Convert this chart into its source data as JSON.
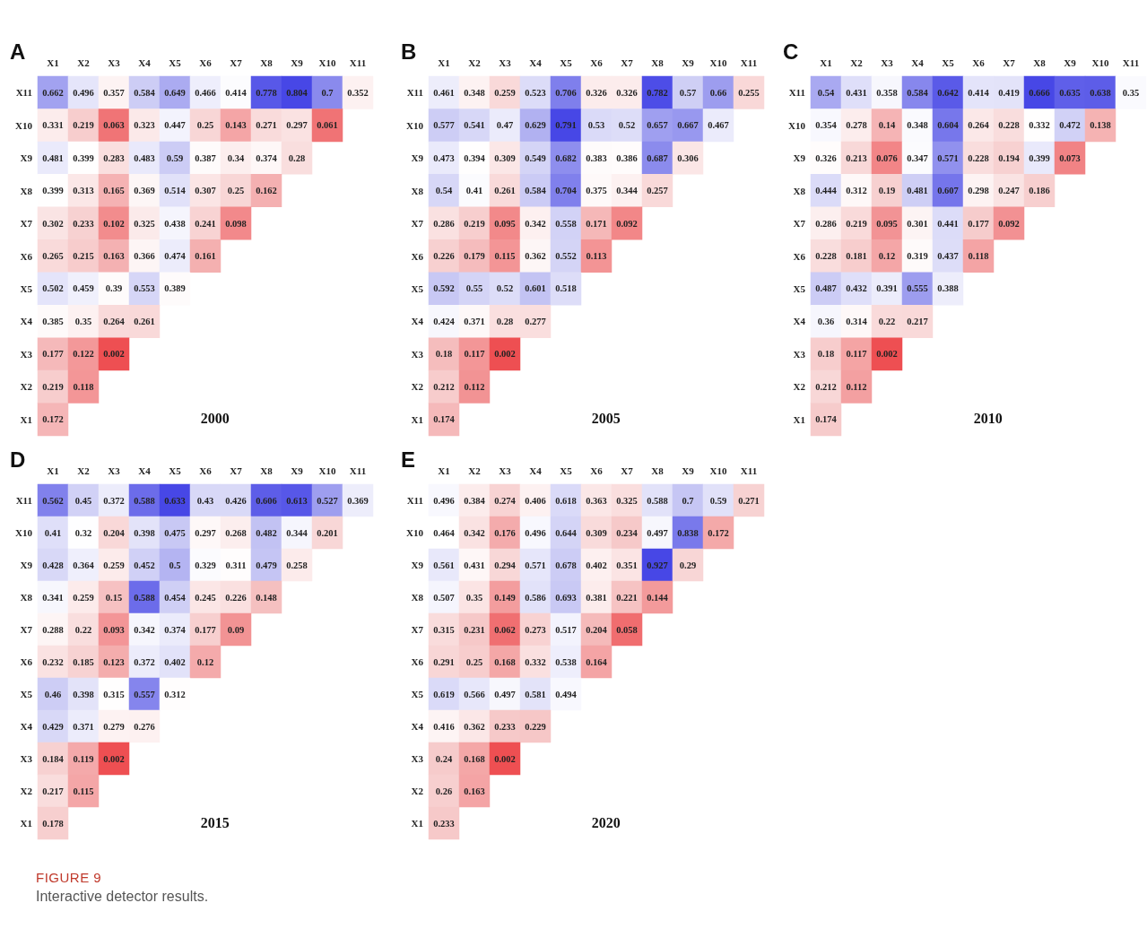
{
  "chart_data": [
    {
      "type": "heatmap",
      "title": "A",
      "subtitle": "2000",
      "data_labels": true,
      "categories": [
        "X1",
        "X2",
        "X3",
        "X4",
        "X5",
        "X6",
        "X7",
        "X8",
        "X9",
        "X10",
        "X11"
      ],
      "y_categories": [
        "X11",
        "X10",
        "X9",
        "X8",
        "X7",
        "X6",
        "X5",
        "X4",
        "X3",
        "X2",
        "X1"
      ],
      "cells": [
        [
          0.662,
          0.496,
          0.357,
          0.584,
          0.649,
          0.466,
          0.414,
          0.778,
          0.804,
          0.7,
          0.352
        ],
        [
          0.331,
          0.219,
          0.063,
          0.323,
          0.447,
          0.25,
          0.143,
          0.271,
          0.297,
          0.061,
          null
        ],
        [
          0.481,
          0.399,
          0.283,
          0.483,
          0.59,
          0.387,
          0.34,
          0.374,
          0.28,
          null,
          null
        ],
        [
          0.399,
          0.313,
          0.165,
          0.369,
          0.514,
          0.307,
          0.25,
          0.162,
          null,
          null,
          null
        ],
        [
          0.302,
          0.233,
          0.102,
          0.325,
          0.438,
          0.241,
          0.098,
          null,
          null,
          null,
          null
        ],
        [
          0.265,
          0.215,
          0.163,
          0.366,
          0.474,
          0.161,
          null,
          null,
          null,
          null,
          null
        ],
        [
          0.502,
          0.459,
          0.39,
          0.553,
          0.389,
          null,
          null,
          null,
          null,
          null,
          null
        ],
        [
          0.385,
          0.35,
          0.264,
          0.261,
          null,
          null,
          null,
          null,
          null,
          null,
          null
        ],
        [
          0.177,
          0.122,
          0.002,
          null,
          null,
          null,
          null,
          null,
          null,
          null,
          null
        ],
        [
          0.219,
          0.118,
          null,
          null,
          null,
          null,
          null,
          null,
          null,
          null,
          null
        ],
        [
          0.172,
          null,
          null,
          null,
          null,
          null,
          null,
          null,
          null,
          null,
          null
        ]
      ]
    },
    {
      "type": "heatmap",
      "title": "B",
      "subtitle": "2005",
      "data_labels": true,
      "categories": [
        "X1",
        "X2",
        "X3",
        "X4",
        "X5",
        "X6",
        "X7",
        "X8",
        "X9",
        "X10",
        "X11"
      ],
      "y_categories": [
        "X11",
        "X10",
        "X9",
        "X8",
        "X7",
        "X6",
        "X5",
        "X4",
        "X3",
        "X2",
        "X1"
      ],
      "cells": [
        [
          0.461,
          0.348,
          0.259,
          0.523,
          0.706,
          0.326,
          0.326,
          0.782,
          0.57,
          0.66,
          0.255
        ],
        [
          0.577,
          0.541,
          0.47,
          0.629,
          0.791,
          0.53,
          0.52,
          0.657,
          0.667,
          0.467,
          null
        ],
        [
          0.473,
          0.394,
          0.309,
          0.549,
          0.682,
          0.383,
          0.386,
          0.687,
          0.306,
          null,
          null
        ],
        [
          0.54,
          0.41,
          0.261,
          0.584,
          0.704,
          0.375,
          0.344,
          0.257,
          null,
          null,
          null
        ],
        [
          0.286,
          0.219,
          0.095,
          0.342,
          0.558,
          0.171,
          0.092,
          null,
          null,
          null,
          null
        ],
        [
          0.226,
          0.179,
          0.115,
          0.362,
          0.552,
          0.113,
          null,
          null,
          null,
          null,
          null
        ],
        [
          0.592,
          0.55,
          0.52,
          0.601,
          0.518,
          null,
          null,
          null,
          null,
          null,
          null
        ],
        [
          0.424,
          0.371,
          0.28,
          0.277,
          null,
          null,
          null,
          null,
          null,
          null,
          null
        ],
        [
          0.18,
          0.117,
          0.002,
          null,
          null,
          null,
          null,
          null,
          null,
          null,
          null
        ],
        [
          0.212,
          0.112,
          null,
          null,
          null,
          null,
          null,
          null,
          null,
          null,
          null
        ],
        [
          0.174,
          null,
          null,
          null,
          null,
          null,
          null,
          null,
          null,
          null,
          null
        ]
      ]
    },
    {
      "type": "heatmap",
      "title": "C",
      "subtitle": "2010",
      "data_labels": true,
      "categories": [
        "X1",
        "X2",
        "X3",
        "X4",
        "X5",
        "X6",
        "X7",
        "X8",
        "X9",
        "X10",
        "X11"
      ],
      "y_categories": [
        "X11",
        "X10",
        "X9",
        "X8",
        "X7",
        "X6",
        "X5",
        "X4",
        "X3",
        "X2",
        "X1"
      ],
      "cells": [
        [
          0.54,
          0.431,
          0.358,
          0.584,
          0.642,
          0.414,
          0.419,
          0.666,
          0.635,
          0.638,
          0.35
        ],
        [
          0.354,
          0.278,
          0.14,
          0.348,
          0.604,
          0.264,
          0.228,
          0.332,
          0.472,
          0.138,
          null
        ],
        [
          0.326,
          0.213,
          0.076,
          0.347,
          0.571,
          0.228,
          0.194,
          0.399,
          0.073,
          null,
          null
        ],
        [
          0.444,
          0.312,
          0.19,
          0.481,
          0.607,
          0.298,
          0.247,
          0.186,
          null,
          null,
          null
        ],
        [
          0.286,
          0.219,
          0.095,
          0.301,
          0.441,
          0.177,
          0.092,
          null,
          null,
          null,
          null
        ],
        [
          0.228,
          0.181,
          0.12,
          0.319,
          0.437,
          0.118,
          null,
          null,
          null,
          null,
          null
        ],
        [
          0.487,
          0.432,
          0.391,
          0.555,
          0.388,
          null,
          null,
          null,
          null,
          null,
          null
        ],
        [
          0.36,
          0.314,
          0.22,
          0.217,
          null,
          null,
          null,
          null,
          null,
          null,
          null
        ],
        [
          0.18,
          0.117,
          0.002,
          null,
          null,
          null,
          null,
          null,
          null,
          null,
          null
        ],
        [
          0.212,
          0.112,
          null,
          null,
          null,
          null,
          null,
          null,
          null,
          null,
          null
        ],
        [
          0.174,
          null,
          null,
          null,
          null,
          null,
          null,
          null,
          null,
          null,
          null
        ]
      ]
    },
    {
      "type": "heatmap",
      "title": "D",
      "subtitle": "2015",
      "data_labels": true,
      "categories": [
        "X1",
        "X2",
        "X3",
        "X4",
        "X5",
        "X6",
        "X7",
        "X8",
        "X9",
        "X10",
        "X11"
      ],
      "y_categories": [
        "X11",
        "X10",
        "X9",
        "X8",
        "X7",
        "X6",
        "X5",
        "X4",
        "X3",
        "X2",
        "X1"
      ],
      "cells": [
        [
          0.562,
          0.45,
          0.372,
          0.588,
          0.633,
          0.43,
          0.426,
          0.606,
          0.613,
          0.527,
          0.369
        ],
        [
          0.41,
          0.32,
          0.204,
          0.398,
          0.475,
          0.297,
          0.268,
          0.482,
          0.344,
          0.201,
          null
        ],
        [
          0.428,
          0.364,
          0.259,
          0.452,
          0.5,
          0.329,
          0.311,
          0.479,
          0.258,
          null,
          null
        ],
        [
          0.341,
          0.259,
          0.15,
          0.588,
          0.454,
          0.245,
          0.226,
          0.148,
          null,
          null,
          null
        ],
        [
          0.288,
          0.22,
          0.093,
          0.342,
          0.374,
          0.177,
          0.09,
          null,
          null,
          null,
          null
        ],
        [
          0.232,
          0.185,
          0.123,
          0.372,
          0.402,
          0.12,
          null,
          null,
          null,
          null,
          null
        ],
        [
          0.46,
          0.398,
          0.315,
          0.557,
          0.312,
          null,
          null,
          null,
          null,
          null,
          null
        ],
        [
          0.429,
          0.371,
          0.279,
          0.276,
          null,
          null,
          null,
          null,
          null,
          null,
          null
        ],
        [
          0.184,
          0.119,
          0.002,
          null,
          null,
          null,
          null,
          null,
          null,
          null,
          null
        ],
        [
          0.217,
          0.115,
          null,
          null,
          null,
          null,
          null,
          null,
          null,
          null,
          null
        ],
        [
          0.178,
          null,
          null,
          null,
          null,
          null,
          null,
          null,
          null,
          null,
          null
        ]
      ]
    },
    {
      "type": "heatmap",
      "title": "E",
      "subtitle": "2020",
      "data_labels": true,
      "categories": [
        "X1",
        "X2",
        "X3",
        "X4",
        "X5",
        "X6",
        "X7",
        "X8",
        "X9",
        "X10",
        "X11"
      ],
      "y_categories": [
        "X11",
        "X10",
        "X9",
        "X8",
        "X7",
        "X6",
        "X5",
        "X4",
        "X3",
        "X2",
        "X1"
      ],
      "cells": [
        [
          0.496,
          0.384,
          0.274,
          0.406,
          0.618,
          0.363,
          0.325,
          0.588,
          0.7,
          0.59,
          0.271
        ],
        [
          0.464,
          0.342,
          0.176,
          0.496,
          0.644,
          0.309,
          0.234,
          0.497,
          0.838,
          0.172,
          null
        ],
        [
          0.561,
          0.431,
          0.294,
          0.571,
          0.678,
          0.402,
          0.351,
          0.927,
          0.29,
          null,
          null
        ],
        [
          0.507,
          0.35,
          0.149,
          0.586,
          0.693,
          0.381,
          0.221,
          0.144,
          null,
          null,
          null
        ],
        [
          0.315,
          0.231,
          0.062,
          0.273,
          0.517,
          0.204,
          0.058,
          null,
          null,
          null,
          null
        ],
        [
          0.291,
          0.25,
          0.168,
          0.332,
          0.538,
          0.164,
          null,
          null,
          null,
          null,
          null
        ],
        [
          0.619,
          0.566,
          0.497,
          0.581,
          0.494,
          null,
          null,
          null,
          null,
          null,
          null
        ],
        [
          0.416,
          0.362,
          0.233,
          0.229,
          null,
          null,
          null,
          null,
          null,
          null,
          null
        ],
        [
          0.24,
          0.168,
          0.002,
          null,
          null,
          null,
          null,
          null,
          null,
          null,
          null
        ],
        [
          0.26,
          0.163,
          null,
          null,
          null,
          null,
          null,
          null,
          null,
          null,
          null
        ],
        [
          0.233,
          null,
          null,
          null,
          null,
          null,
          null,
          null,
          null,
          null,
          null
        ]
      ]
    },
    {
      "type": "other",
      "title": "FIGURE 9",
      "subtitle": "Interactive detector results."
    }
  ]
}
